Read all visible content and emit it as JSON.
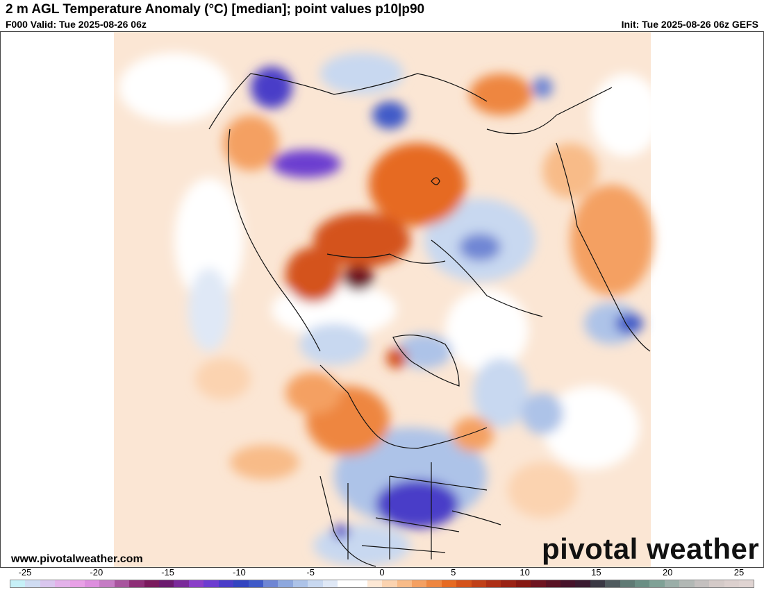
{
  "header": {
    "title": "2 m AGL Temperature Anomaly (°C) [median]; point values p10|p90",
    "valid": "F000 Valid: Tue 2025-08-26 06z",
    "init": "Init: Tue 2025-08-26 06z GEFS"
  },
  "footer": {
    "website": "www.pivotalweather.com",
    "brand": "pivotal weather"
  },
  "colorbar": {
    "unit": "°C",
    "min": -25,
    "max": 25,
    "ticks": [
      "-25",
      "-20",
      "-15",
      "-10",
      "-5",
      "0",
      "5",
      "10",
      "15",
      "20",
      "25"
    ],
    "colors": [
      "#c6f0f7",
      "#cfdcf2",
      "#d9c6ee",
      "#e3b2ea",
      "#e8a0e6",
      "#dd8ede",
      "#c57cc4",
      "#a8559e",
      "#8e2f77",
      "#7a1a5d",
      "#6b1a6e",
      "#7a2a9a",
      "#8a3ec8",
      "#6c3cd0",
      "#4a3cc8",
      "#3344c0",
      "#3f5ac8",
      "#6f86d4",
      "#8ea8de",
      "#adc3e8",
      "#c8d8f0",
      "#dfe8f6",
      "#ffffff",
      "#ffffff",
      "#fde8d5",
      "#fbd3b0",
      "#f8bb88",
      "#f4a062",
      "#ee8640",
      "#e66a22",
      "#d4521a",
      "#c04018",
      "#ad2f16",
      "#9a2214",
      "#861812",
      "#6e1420",
      "#5a1224",
      "#46122a",
      "#3a1a30",
      "#3a3844",
      "#4f5a5e",
      "#5f7a74",
      "#6a8e84",
      "#7fa196",
      "#9aaea8",
      "#b2b8b5",
      "#c4c0bf",
      "#d4cac8",
      "#dcd0ce",
      "#e0d4d2"
    ]
  },
  "map": {
    "region": "North America / Arctic",
    "warm_color": "#f3a56a",
    "cold_color": "#3344c0"
  }
}
